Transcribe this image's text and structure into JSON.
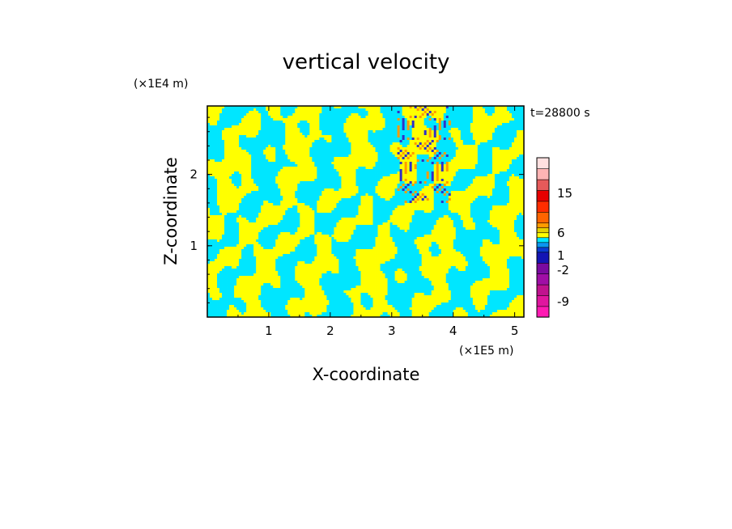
{
  "chart_data": {
    "type": "heatmap",
    "title": "vertical velocity",
    "xlabel": "X-coordinate",
    "ylabel": "Z-coordinate",
    "x_unit": "(×1E5 m)",
    "y_unit": "(×1E4 m)",
    "time_label": "t=28800 s",
    "xlim": [
      0,
      5.15
    ],
    "ylim": [
      0,
      2.96
    ],
    "xticks": [
      1,
      2,
      3,
      4,
      5
    ],
    "yticks": [
      1,
      2
    ],
    "colorbar": {
      "bins": [
        {
          "color": "#ff1ab3"
        },
        {
          "color": "#e0169f"
        },
        {
          "color": "#c0128f"
        },
        {
          "color": "#a00ea6"
        },
        {
          "color": "#7a0aa0"
        },
        {
          "color": "#1414b4"
        },
        {
          "color": "#0a3cd2"
        },
        {
          "color": "#0a96f0"
        },
        {
          "color": "#00e6ff"
        },
        {
          "color": "#ffff00"
        },
        {
          "color": "#e6d200"
        },
        {
          "color": "#ff9b00"
        },
        {
          "color": "#ff6400"
        },
        {
          "color": "#ff2d00"
        },
        {
          "color": "#e60000"
        },
        {
          "color": "#e65a5a"
        },
        {
          "color": "#ffb4b4"
        },
        {
          "color": "#ffe1e1"
        }
      ],
      "labels": [
        "-9",
        "-2",
        "1",
        "6",
        "15"
      ]
    },
    "dominant_colors": {
      "negative": "#00e6ff",
      "positive": "#ffff00",
      "strong_negative": "#3030c8",
      "strong_positive": "#ff9b00"
    }
  }
}
